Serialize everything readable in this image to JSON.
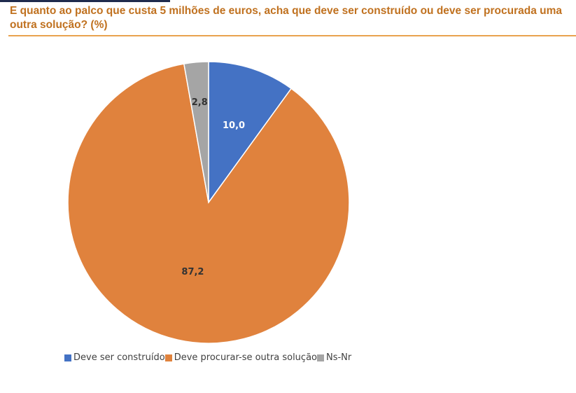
{
  "title": "E quanto ao palco que custa 5 milhões de euros, acha que deve ser construído ou deve ser procurada uma outra solução? (%)",
  "chart_data": {
    "type": "pie",
    "title": "E quanto ao palco que custa 5 milhões de euros, acha que deve ser construído ou deve ser procurada uma outra solução? (%)",
    "categories": [
      "Deve ser construído",
      "Deve procurar-se outra solução",
      "Ns-Nr"
    ],
    "values": [
      10.0,
      87.2,
      2.8
    ],
    "data_labels": [
      "10,0",
      "87,2",
      "2,8"
    ],
    "colors": [
      "#4472c4",
      "#e0823d",
      "#a5a5a5"
    ],
    "label_colors": [
      "#ffffff",
      "#333333",
      "#333333"
    ],
    "legend_position": "bottom"
  }
}
